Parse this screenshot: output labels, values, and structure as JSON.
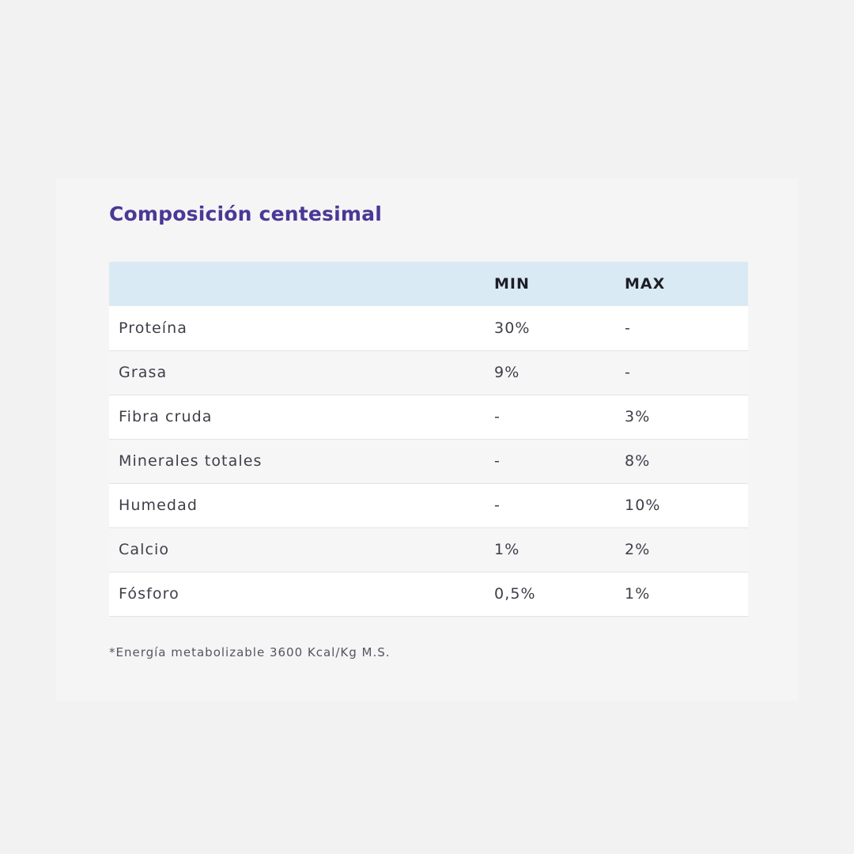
{
  "card": {
    "title": "Composición centesimal",
    "columns": [
      "",
      "MIN",
      "MAX"
    ],
    "rows": [
      {
        "name": "Proteína",
        "min": "30%",
        "max": "-"
      },
      {
        "name": "Grasa",
        "min": "9%",
        "max": "-"
      },
      {
        "name": "Fibra cruda",
        "min": "-",
        "max": "3%"
      },
      {
        "name": "Minerales totales",
        "min": "-",
        "max": "8%"
      },
      {
        "name": "Humedad",
        "min": "-",
        "max": "10%"
      },
      {
        "name": "Calcio",
        "min": "1%",
        "max": "2%"
      },
      {
        "name": "Fósforo",
        "min": "0,5%",
        "max": "1%"
      }
    ],
    "footnote": "*Energía metabolizable 3600 Kcal/Kg M.S."
  },
  "colors": {
    "title": "#4a3896",
    "header_background": "#daeaf4",
    "page_background": "#f2f2f3"
  }
}
